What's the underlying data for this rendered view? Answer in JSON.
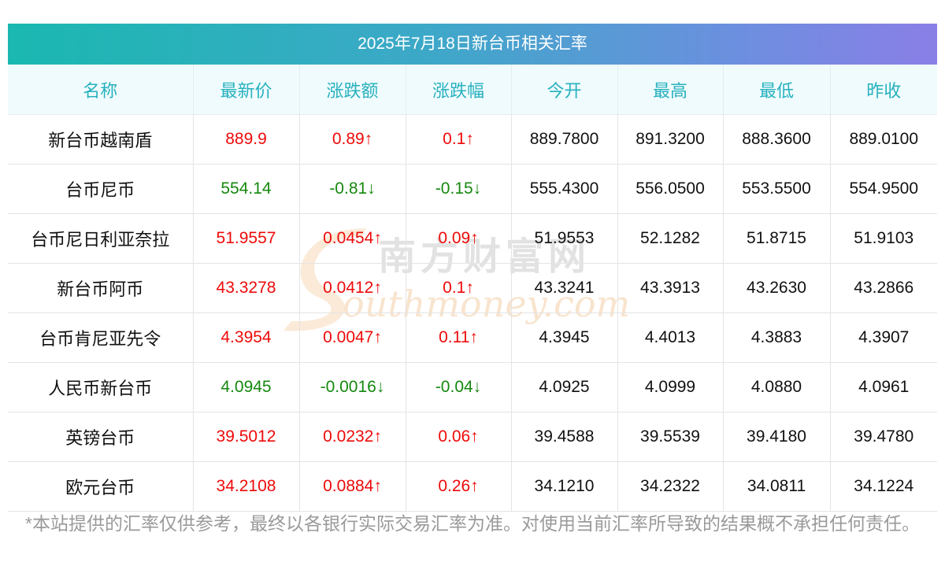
{
  "title": "2025年7月18日新台币相关汇率",
  "columns": [
    "名称",
    "最新价",
    "涨跌额",
    "涨跌幅",
    "今开",
    "最高",
    "最低",
    "昨收"
  ],
  "rows": [
    {
      "name": "新台币越南盾",
      "latest": "889.9",
      "change": "0.89↑",
      "pct": "0.1↑",
      "open": "889.7800",
      "high": "891.3200",
      "low": "888.3600",
      "prev": "889.0100",
      "dir": "up"
    },
    {
      "name": "台币尼币",
      "latest": "554.14",
      "change": "-0.81↓",
      "pct": "-0.15↓",
      "open": "555.4300",
      "high": "556.0500",
      "low": "553.5500",
      "prev": "554.9500",
      "dir": "down"
    },
    {
      "name": "台币尼日利亚奈拉",
      "latest": "51.9557",
      "change": "0.0454↑",
      "pct": "0.09↑",
      "open": "51.9553",
      "high": "52.1282",
      "low": "51.8715",
      "prev": "51.9103",
      "dir": "up"
    },
    {
      "name": "新台币阿币",
      "latest": "43.3278",
      "change": "0.0412↑",
      "pct": "0.1↑",
      "open": "43.3241",
      "high": "43.3913",
      "low": "43.2630",
      "prev": "43.2866",
      "dir": "up"
    },
    {
      "name": "台币肯尼亚先令",
      "latest": "4.3954",
      "change": "0.0047↑",
      "pct": "0.11↑",
      "open": "4.3945",
      "high": "4.4013",
      "low": "4.3883",
      "prev": "4.3907",
      "dir": "up"
    },
    {
      "name": "人民币新台币",
      "latest": "4.0945",
      "change": "-0.0016↓",
      "pct": "-0.04↓",
      "open": "4.0925",
      "high": "4.0999",
      "low": "4.0880",
      "prev": "4.0961",
      "dir": "down"
    },
    {
      "name": "英镑台币",
      "latest": "39.5012",
      "change": "0.0232↑",
      "pct": "0.06↑",
      "open": "39.4588",
      "high": "39.5539",
      "low": "39.4180",
      "prev": "39.4780",
      "dir": "up"
    },
    {
      "name": "欧元台币",
      "latest": "34.2108",
      "change": "0.0884↑",
      "pct": "0.26↑",
      "open": "34.1210",
      "high": "34.2322",
      "low": "34.0811",
      "prev": "34.1224",
      "dir": "up"
    }
  ],
  "watermark": {
    "cn": "南方财富网",
    "en": "outhmoney.com",
    "letter": "S"
  },
  "footer": "*本站提供的汇率仅供参考，最终以各银行实际交易汇率为准。对使用当前汇率所导致的结果概不承担任何责任。",
  "colors": {
    "up": "#ee0a0a",
    "down": "#16880f",
    "header_text": "#26b1be",
    "header_bg": "#f0fbfd",
    "title_grad_start": "#1ab8b0",
    "title_grad_end": "#8a7fe6"
  }
}
